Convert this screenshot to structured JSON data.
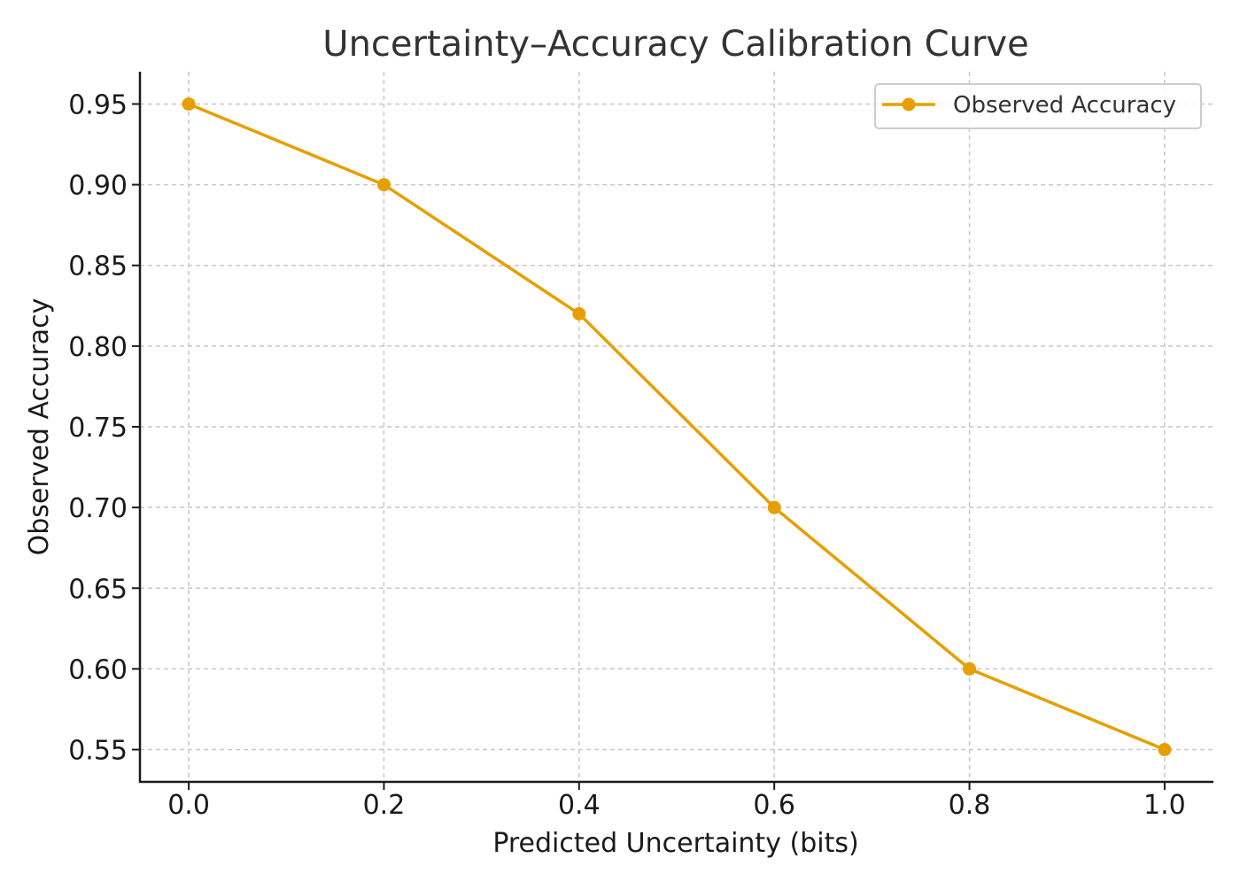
{
  "chart_data": {
    "type": "line",
    "title": "Uncertainty–Accuracy Calibration Curve",
    "xlabel": "Predicted Uncertainty (bits)",
    "ylabel": "Observed Accuracy",
    "xlim": [
      -0.05,
      1.05
    ],
    "ylim": [
      0.53,
      0.97
    ],
    "x_ticks": [
      "0.0",
      "0.2",
      "0.4",
      "0.6",
      "0.8",
      "1.0"
    ],
    "y_ticks": [
      "0.55",
      "0.60",
      "0.65",
      "0.70",
      "0.75",
      "0.80",
      "0.85",
      "0.90",
      "0.95"
    ],
    "grid": true,
    "legend_position": "top-right",
    "series": [
      {
        "name": "Observed Accuracy",
        "x": [
          0.0,
          0.2,
          0.4,
          0.6,
          0.8,
          1.0
        ],
        "y": [
          0.95,
          0.9,
          0.82,
          0.7,
          0.6,
          0.55
        ],
        "color": "#E69F00",
        "marker": "circle"
      }
    ]
  }
}
